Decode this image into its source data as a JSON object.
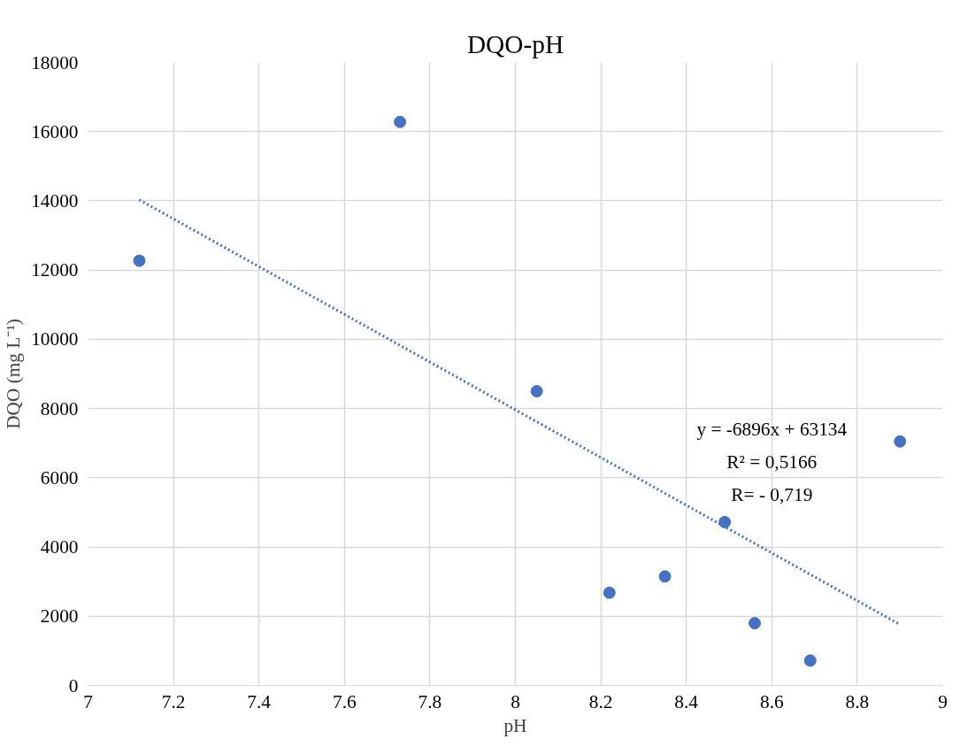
{
  "chart_data": {
    "type": "scatter",
    "title": "DQO-pH",
    "xlabel": "pH",
    "ylabel": "DQO (mg L⁻¹)",
    "xlim": [
      7,
      9
    ],
    "xticks": [
      7,
      7.2,
      7.4,
      7.6,
      7.8,
      8,
      8.2,
      8.4,
      8.6,
      8.8,
      9
    ],
    "ylim": [
      0,
      18000
    ],
    "yticks": [
      0,
      2000,
      4000,
      6000,
      8000,
      10000,
      12000,
      14000,
      16000,
      18000
    ],
    "grid": true,
    "series": [
      {
        "marker": "circle",
        "color": "#4472c4",
        "x": [
          7.12,
          7.73,
          8.05,
          8.22,
          8.35,
          8.49,
          8.56,
          8.69,
          8.9
        ],
        "values": [
          12270,
          16280,
          8500,
          2680,
          3150,
          4720,
          1800,
          720,
          7050
        ]
      },
      {
        "type": "line",
        "line_style": "dotted",
        "color": "#4472c4",
        "x": [
          7.12,
          8.9
        ],
        "values": [
          14030,
          1760
        ]
      }
    ],
    "annotations": [
      "y = -6896x + 63134",
      "R² = 0,5166",
      "R= - 0,719"
    ]
  }
}
